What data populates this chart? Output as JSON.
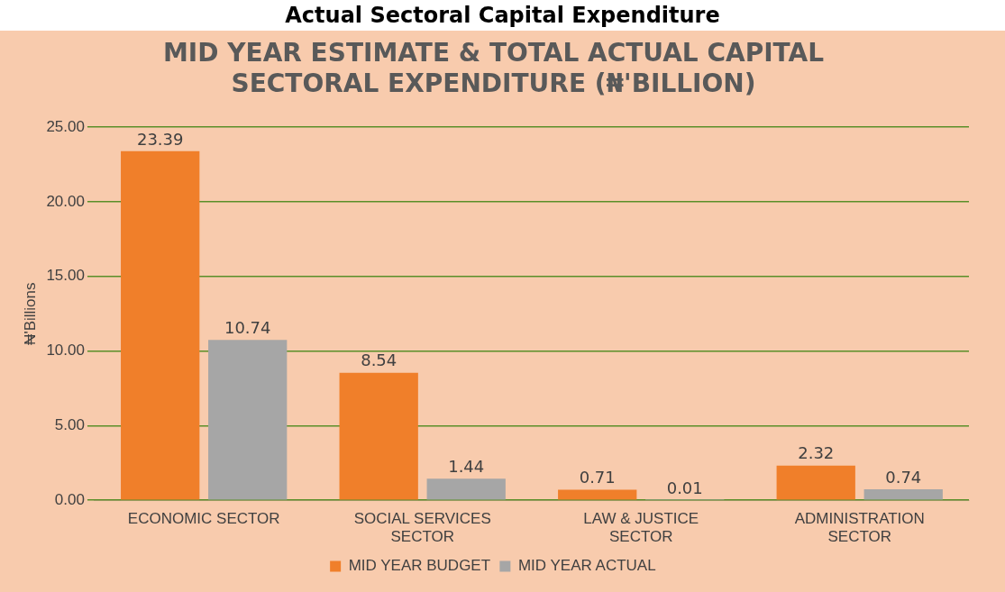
{
  "chart_data": {
    "type": "bar",
    "title": "MID YEAR ESTIMATE & TOTAL ACTUAL CAPITAL SECTORAL EXPENDITURE (₦'BILLION)",
    "ylabel": "₦'Billions",
    "annotations": [
      "Actual Sectoral Capital Expenditure"
    ],
    "categories": [
      "ECONOMIC SECTOR",
      "SOCIAL SERVICES SECTOR",
      "LAW & JUSTICE SECTOR",
      "ADMINISTRATION SECTOR"
    ],
    "series": [
      {
        "name": "MID YEAR BUDGET",
        "color": "#f07f2a",
        "values": [
          23.39,
          8.54,
          0.71,
          2.32
        ]
      },
      {
        "name": "MID YEAR ACTUAL",
        "color": "#a6a6a6",
        "values": [
          10.74,
          1.44,
          0.01,
          0.74
        ]
      }
    ],
    "ylim": [
      0,
      25
    ],
    "yticks": [
      {
        "value": 0,
        "label": "0.00"
      },
      {
        "value": 5,
        "label": "5.00"
      },
      {
        "value": 10,
        "label": "10.00"
      },
      {
        "value": 15,
        "label": "15.00"
      },
      {
        "value": 20,
        "label": "20.00"
      },
      {
        "value": 25,
        "label": "25.00"
      }
    ],
    "grid": "y",
    "legend": "bottom",
    "data_labels": true
  }
}
